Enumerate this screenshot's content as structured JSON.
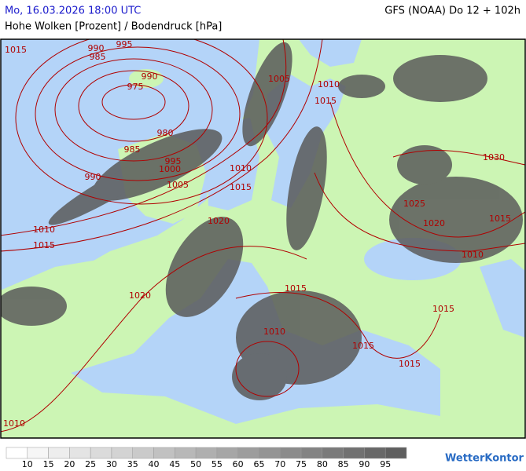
{
  "header": {
    "date": "Mo, 16.03.2026 18:00 UTC",
    "model": "GFS (NOAA) Do 12 + 102h",
    "title": "Hohe Wolken [Prozent] / Bodendruck [hPa]"
  },
  "isobar_labels": [
    "1015",
    "990",
    "995",
    "985",
    "990",
    "975",
    "980",
    "985",
    "995",
    "1000",
    "990",
    "1005",
    "1005",
    "1010",
    "1015",
    "1010",
    "1015",
    "1030",
    "1025",
    "1020",
    "1015",
    "1020",
    "1010",
    "1015",
    "1010",
    "1020",
    "1015",
    "1015",
    "1010",
    "1015",
    "1015",
    "1010"
  ],
  "legend": {
    "labels": [
      10,
      15,
      20,
      25,
      30,
      35,
      40,
      45,
      50,
      55,
      60,
      65,
      70,
      75,
      80,
      85,
      90,
      95
    ]
  },
  "logo": "WetterKontor"
}
